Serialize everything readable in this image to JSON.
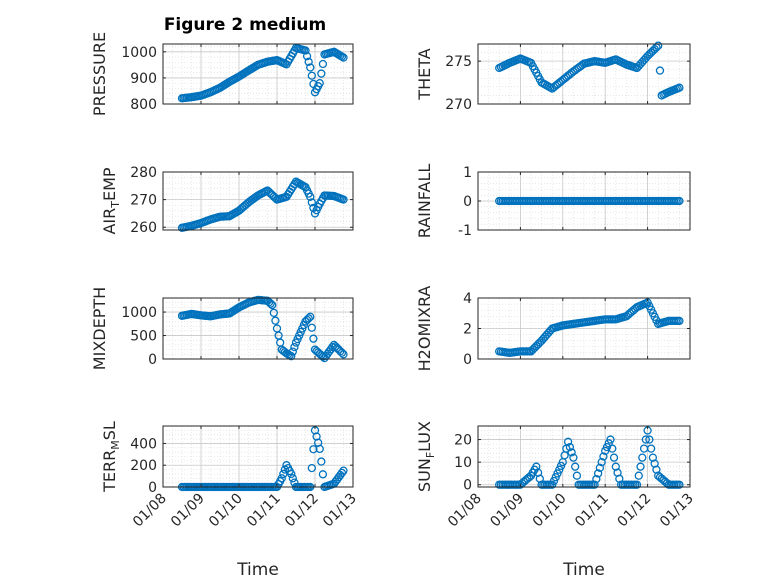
{
  "figure_title": "Figure 2 medium",
  "marker_color": "#0072BD",
  "chart_data": [
    {
      "type": "scatter",
      "ylabel": "PRESSURE",
      "ylim": [
        800,
        1030
      ],
      "yticks": [
        800,
        900,
        1000
      ],
      "ytick_labels": [
        "800",
        "900",
        "1000"
      ],
      "x": [
        "2019-01-08T12:00",
        "2019-01-08T18:00",
        "2019-01-09T00:00",
        "2019-01-09T06:00",
        "2019-01-09T12:00",
        "2019-01-09T18:00",
        "2019-01-10T00:00",
        "2019-01-10T06:00",
        "2019-01-10T12:00",
        "2019-01-10T18:00",
        "2019-01-11T00:00",
        "2019-01-11T06:00",
        "2019-01-11T12:00",
        "2019-01-11T18:00",
        "2019-01-11T21:00",
        "2019-01-12T00:00",
        "2019-01-12T03:00",
        "2019-01-12T06:00",
        "2019-01-12T12:00",
        "2019-01-12T18:00"
      ],
      "y": [
        822,
        826,
        832,
        845,
        862,
        885,
        905,
        928,
        950,
        962,
        968,
        952,
        1015,
        1005,
        940,
        845,
        880,
        990,
        1000,
        978
      ],
      "xlabel": "",
      "xtick_labels": [],
      "grid": true
    },
    {
      "type": "scatter",
      "ylabel": "THETA",
      "ylim": [
        270,
        277
      ],
      "yticks": [
        270,
        275
      ],
      "ytick_labels": [
        "270",
        "275"
      ],
      "x": [
        "2019-01-08T12:00",
        "2019-01-08T18:00",
        "2019-01-09T00:00",
        "2019-01-09T06:00",
        "2019-01-09T12:00",
        "2019-01-09T18:00",
        "2019-01-10T00:00",
        "2019-01-10T06:00",
        "2019-01-10T12:00",
        "2019-01-10T18:00",
        "2019-01-11T00:00",
        "2019-01-11T06:00",
        "2019-01-11T12:00",
        "2019-01-11T18:00",
        "2019-01-12T00:00",
        "2019-01-12T06:00",
        "2019-01-12T08:00",
        "2019-01-12T12:00",
        "2019-01-12T18:00"
      ],
      "y": [
        274.2,
        274.8,
        275.3,
        274.8,
        272.5,
        271.8,
        272.8,
        273.8,
        274.7,
        275.0,
        274.8,
        275.2,
        274.6,
        274.2,
        275.6,
        276.8,
        271.0,
        271.4,
        271.9
      ],
      "xlabel": "",
      "xtick_labels": [],
      "grid": true
    },
    {
      "type": "scatter",
      "ylabel": "AIR_TEMP",
      "ylim": [
        259,
        280
      ],
      "yticks": [
        260,
        270,
        280
      ],
      "ytick_labels": [
        "260",
        "270",
        "280"
      ],
      "x": [
        "2019-01-08T12:00",
        "2019-01-08T18:00",
        "2019-01-09T00:00",
        "2019-01-09T06:00",
        "2019-01-09T12:00",
        "2019-01-09T18:00",
        "2019-01-10T00:00",
        "2019-01-10T06:00",
        "2019-01-10T12:00",
        "2019-01-10T18:00",
        "2019-01-11T00:00",
        "2019-01-11T06:00",
        "2019-01-11T12:00",
        "2019-01-11T18:00",
        "2019-01-11T21:00",
        "2019-01-12T00:00",
        "2019-01-12T03:00",
        "2019-01-12T06:00",
        "2019-01-12T12:00",
        "2019-01-12T18:00"
      ],
      "y": [
        259.8,
        260.5,
        261.5,
        262.8,
        263.8,
        264.0,
        266.0,
        269.0,
        271.5,
        273.3,
        270.0,
        271.0,
        276.5,
        274.5,
        271.0,
        265.0,
        268.5,
        271.5,
        271.3,
        270.0
      ],
      "xlabel": "",
      "xtick_labels": [],
      "grid": true
    },
    {
      "type": "scatter",
      "ylabel": "RAINFALL",
      "ylim": [
        -1,
        1
      ],
      "yticks": [
        -1,
        0,
        1
      ],
      "ytick_labels": [
        "-1",
        "0",
        "1"
      ],
      "x": [
        "2019-01-08T12:00",
        "2019-01-09T00:00",
        "2019-01-09T12:00",
        "2019-01-10T00:00",
        "2019-01-10T12:00",
        "2019-01-11T00:00",
        "2019-01-11T12:00",
        "2019-01-12T00:00",
        "2019-01-12T12:00",
        "2019-01-12T18:00"
      ],
      "y": [
        0,
        0,
        0,
        0,
        0,
        0,
        0,
        0,
        0,
        0
      ],
      "xlabel": "",
      "xtick_labels": [],
      "grid": true
    },
    {
      "type": "scatter",
      "ylabel": "MIXDEPTH",
      "ylim": [
        0,
        1300
      ],
      "yticks": [
        0,
        500,
        1000
      ],
      "ytick_labels": [
        "0",
        "500",
        "1000"
      ],
      "x": [
        "2019-01-08T12:00",
        "2019-01-08T18:00",
        "2019-01-09T00:00",
        "2019-01-09T06:00",
        "2019-01-09T12:00",
        "2019-01-09T18:00",
        "2019-01-10T00:00",
        "2019-01-10T06:00",
        "2019-01-10T12:00",
        "2019-01-10T18:00",
        "2019-01-10T21:00",
        "2019-01-11T00:00",
        "2019-01-11T03:00",
        "2019-01-11T06:00",
        "2019-01-11T09:00",
        "2019-01-11T12:00",
        "2019-01-11T18:00",
        "2019-01-11T21:00",
        "2019-01-12T00:00",
        "2019-01-12T06:00",
        "2019-01-12T12:00",
        "2019-01-12T18:00"
      ],
      "y": [
        920,
        960,
        930,
        910,
        950,
        970,
        1100,
        1200,
        1260,
        1240,
        1150,
        650,
        200,
        120,
        60,
        350,
        800,
        900,
        200,
        20,
        300,
        100
      ],
      "xlabel": "",
      "xtick_labels": [],
      "grid": true
    },
    {
      "type": "scatter",
      "ylabel": "H2OMIXRA",
      "ylim": [
        0,
        4
      ],
      "yticks": [
        0,
        2,
        4
      ],
      "ytick_labels": [
        "0",
        "2",
        "4"
      ],
      "x": [
        "2019-01-08T12:00",
        "2019-01-08T18:00",
        "2019-01-09T00:00",
        "2019-01-09T06:00",
        "2019-01-09T12:00",
        "2019-01-09T18:00",
        "2019-01-10T00:00",
        "2019-01-10T06:00",
        "2019-01-10T12:00",
        "2019-01-10T18:00",
        "2019-01-11T00:00",
        "2019-01-11T06:00",
        "2019-01-11T12:00",
        "2019-01-11T18:00",
        "2019-01-12T00:00",
        "2019-01-12T06:00",
        "2019-01-12T12:00",
        "2019-01-12T18:00"
      ],
      "y": [
        0.5,
        0.4,
        0.5,
        0.5,
        1.2,
        2.0,
        2.2,
        2.3,
        2.4,
        2.5,
        2.6,
        2.6,
        2.8,
        3.4,
        3.7,
        2.3,
        2.5,
        2.5
      ],
      "xlabel": "",
      "xtick_labels": [],
      "grid": true
    },
    {
      "type": "scatter",
      "ylabel": "TERR_MSL",
      "ylim": [
        0,
        560
      ],
      "yticks": [
        0,
        200,
        400
      ],
      "ytick_labels": [
        "0",
        "200",
        "400"
      ],
      "x": [
        "2019-01-08T12:00",
        "2019-01-09T00:00",
        "2019-01-09T12:00",
        "2019-01-10T00:00",
        "2019-01-10T12:00",
        "2019-01-11T00:00",
        "2019-01-11T03:00",
        "2019-01-11T06:00",
        "2019-01-11T09:00",
        "2019-01-11T12:00",
        "2019-01-11T18:00",
        "2019-01-11T21:00",
        "2019-01-12T00:00",
        "2019-01-12T03:00",
        "2019-01-12T06:00",
        "2019-01-12T12:00",
        "2019-01-12T18:00"
      ],
      "y": [
        0,
        0,
        0,
        0,
        0,
        0,
        80,
        200,
        120,
        0,
        0,
        0,
        520,
        350,
        0,
        30,
        150
      ],
      "xlabel": "Time",
      "xtick_labels": [
        "01/08",
        "01/09",
        "01/10",
        "01/11",
        "01/12",
        "01/13"
      ],
      "grid": true
    },
    {
      "type": "scatter",
      "ylabel": "SUN_FLUX",
      "ylim": [
        -1,
        26
      ],
      "yticks": [
        0,
        10,
        20
      ],
      "ytick_labels": [
        "0",
        "10",
        "20"
      ],
      "x": [
        "2019-01-08T12:00",
        "2019-01-09T00:00",
        "2019-01-09T06:00",
        "2019-01-09T09:00",
        "2019-01-09T12:00",
        "2019-01-09T18:00",
        "2019-01-10T00:00",
        "2019-01-10T03:00",
        "2019-01-10T06:00",
        "2019-01-10T09:00",
        "2019-01-10T12:00",
        "2019-01-10T18:00",
        "2019-01-11T00:00",
        "2019-01-11T03:00",
        "2019-01-11T06:00",
        "2019-01-11T09:00",
        "2019-01-11T12:00",
        "2019-01-11T18:00",
        "2019-01-12T00:00",
        "2019-01-12T03:00",
        "2019-01-12T06:00",
        "2019-01-12T12:00",
        "2019-01-12T18:00"
      ],
      "y": [
        0,
        0,
        4,
        8,
        0,
        0,
        10,
        19,
        12,
        0,
        0,
        0,
        15,
        20,
        8,
        0,
        0,
        0,
        24,
        12,
        4,
        0,
        0
      ],
      "xlabel": "Time",
      "xtick_labels": [
        "01/08",
        "01/09",
        "01/10",
        "01/11",
        "01/12",
        "01/13"
      ],
      "grid": true
    }
  ]
}
